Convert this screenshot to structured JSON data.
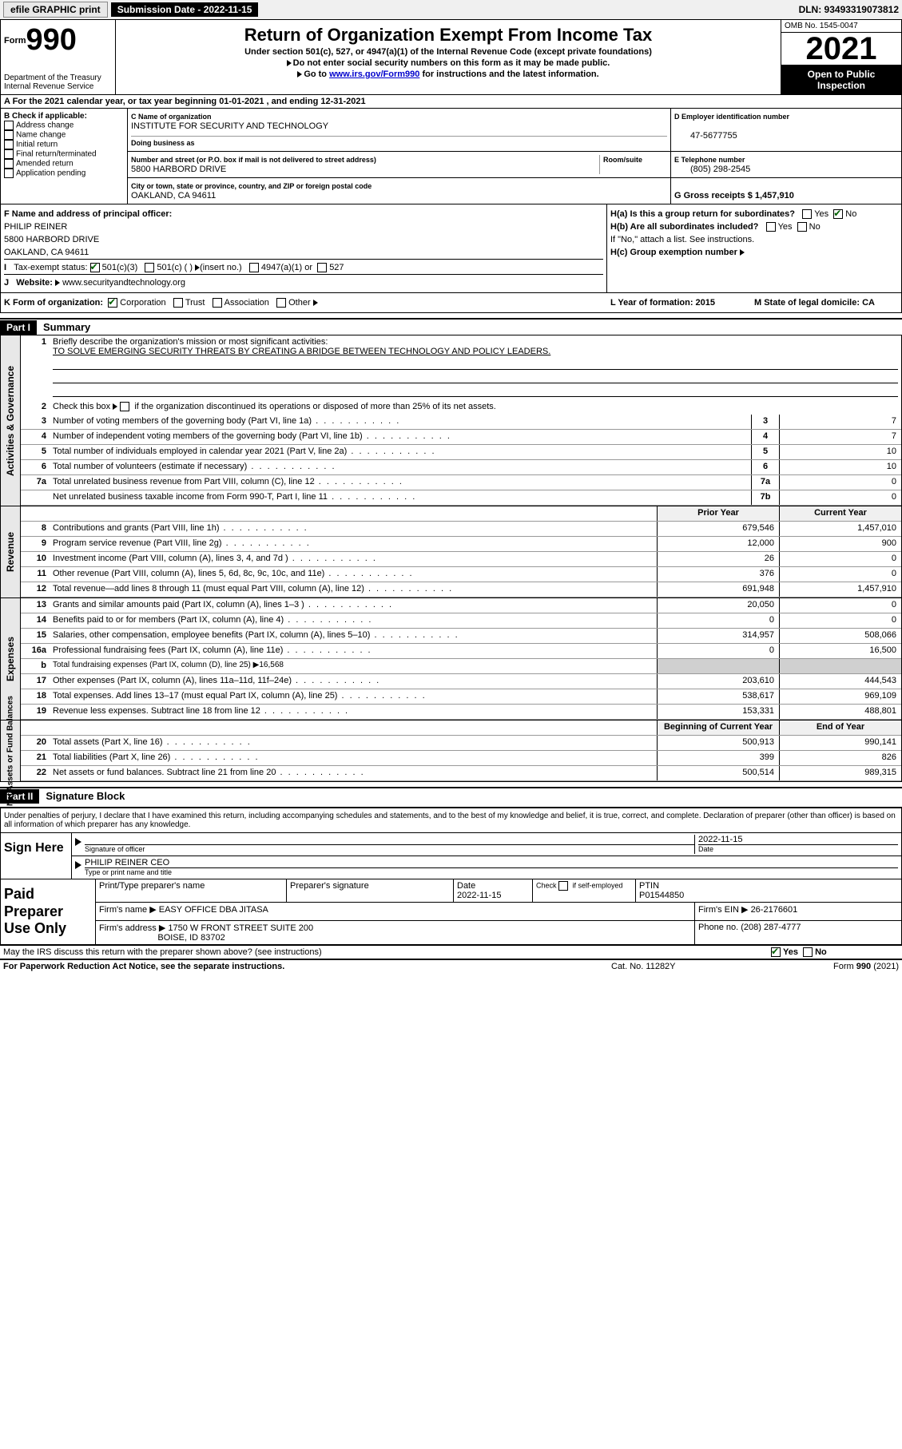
{
  "topbar": {
    "efile": "efile GRAPHIC print",
    "subdate_label": "Submission Date - 2022-11-15",
    "dln": "DLN: 93493319073812"
  },
  "header": {
    "form_prefix": "Form",
    "form_number": "990",
    "dept": "Department of the Treasury Internal Revenue Service",
    "title": "Return of Organization Exempt From Income Tax",
    "subtitle": "Under section 501(c), 527, or 4947(a)(1) of the Internal Revenue Code (except private foundations)",
    "note1": "Do not enter social security numbers on this form as it may be made public.",
    "note2_pre": "Go to ",
    "note2_link": "www.irs.gov/Form990",
    "note2_post": " for instructions and the latest information.",
    "omb": "OMB No. 1545-0047",
    "year": "2021",
    "inspect": "Open to Public Inspection"
  },
  "row_a": "A For the 2021 calendar year, or tax year beginning 01-01-2021   , and ending 12-31-2021",
  "section_b": {
    "check_label": "B Check if applicable:",
    "opts": [
      "Address change",
      "Name change",
      "Initial return",
      "Final return/terminated",
      "Amended return",
      "Application pending"
    ],
    "c_label": "C Name of organization",
    "c_name": "INSTITUTE FOR SECURITY AND TECHNOLOGY",
    "dba": "Doing business as",
    "addr_label": "Number and street (or P.O. box if mail is not delivered to street address)",
    "room": "Room/suite",
    "addr": "5800 HARBORD DRIVE",
    "city_label": "City or town, state or province, country, and ZIP or foreign postal code",
    "city": "OAKLAND, CA  94611",
    "d_label": "D Employer identification number",
    "d_ein": "47-5677755",
    "e_label": "E Telephone number",
    "e_phone": "(805) 298-2545",
    "g_label": "G Gross receipts $ 1,457,910"
  },
  "section_f": {
    "f_label": "F Name and address of principal officer:",
    "f_name": "PHILIP REINER",
    "f_addr1": "5800 HARBORD DRIVE",
    "f_addr2": "OAKLAND, CA  94611",
    "i_label": "Tax-exempt status:",
    "i_501c3": "501(c)(3)",
    "i_501c": "501(c) (  )",
    "i_insert": "(insert no.)",
    "i_4947": "4947(a)(1) or",
    "i_527": "527",
    "j_label": "Website:",
    "j_url": "www.securityandtechnology.org",
    "ha": "H(a)  Is this a group return for subordinates?",
    "hb": "H(b)  Are all subordinates included?",
    "hb_note": "If \"No,\" attach a list. See instructions.",
    "hc": "H(c)  Group exemption number",
    "yes": "Yes",
    "no": "No"
  },
  "section_k": {
    "k_label": "K Form of organization:",
    "k_corp": "Corporation",
    "k_trust": "Trust",
    "k_assoc": "Association",
    "k_other": "Other",
    "l_label": "L Year of formation: 2015",
    "m_label": "M State of legal domicile: CA"
  },
  "part1": {
    "header": "Part I",
    "title": "Summary",
    "line1_label": "Briefly describe the organization's mission or most significant activities:",
    "line1_text": "TO SOLVE EMERGING SECURITY THREATS BY CREATING A BRIDGE BETWEEN TECHNOLOGY AND POLICY LEADERS.",
    "line2": "Check this box ▶       if the organization discontinued its operations or disposed of more than 25% of its net assets.",
    "rows_gov": [
      {
        "n": "3",
        "d": "Number of voting members of the governing body (Part VI, line 1a)",
        "box": "3",
        "v": "7"
      },
      {
        "n": "4",
        "d": "Number of independent voting members of the governing body (Part VI, line 1b)",
        "box": "4",
        "v": "7"
      },
      {
        "n": "5",
        "d": "Total number of individuals employed in calendar year 2021 (Part V, line 2a)",
        "box": "5",
        "v": "10"
      },
      {
        "n": "6",
        "d": "Total number of volunteers (estimate if necessary)",
        "box": "6",
        "v": "10"
      },
      {
        "n": "7a",
        "d": "Total unrelated business revenue from Part VIII, column (C), line 12",
        "box": "7a",
        "v": "0"
      },
      {
        "n": "",
        "d": "Net unrelated business taxable income from Form 990-T, Part I, line 11",
        "box": "7b",
        "v": "0"
      }
    ],
    "col_prior": "Prior Year",
    "col_current": "Current Year",
    "rows_rev": [
      {
        "n": "8",
        "d": "Contributions and grants (Part VIII, line 1h)",
        "p": "679,546",
        "c": "1,457,010"
      },
      {
        "n": "9",
        "d": "Program service revenue (Part VIII, line 2g)",
        "p": "12,000",
        "c": "900"
      },
      {
        "n": "10",
        "d": "Investment income (Part VIII, column (A), lines 3, 4, and 7d )",
        "p": "26",
        "c": "0"
      },
      {
        "n": "11",
        "d": "Other revenue (Part VIII, column (A), lines 5, 6d, 8c, 9c, 10c, and 11e)",
        "p": "376",
        "c": "0"
      },
      {
        "n": "12",
        "d": "Total revenue—add lines 8 through 11 (must equal Part VIII, column (A), line 12)",
        "p": "691,948",
        "c": "1,457,910"
      }
    ],
    "rows_exp": [
      {
        "n": "13",
        "d": "Grants and similar amounts paid (Part IX, column (A), lines 1–3 )",
        "p": "20,050",
        "c": "0"
      },
      {
        "n": "14",
        "d": "Benefits paid to or for members (Part IX, column (A), line 4)",
        "p": "0",
        "c": "0"
      },
      {
        "n": "15",
        "d": "Salaries, other compensation, employee benefits (Part IX, column (A), lines 5–10)",
        "p": "314,957",
        "c": "508,066"
      },
      {
        "n": "16a",
        "d": "Professional fundraising fees (Part IX, column (A), line 11e)",
        "p": "0",
        "c": "16,500"
      },
      {
        "n": "b",
        "d": "Total fundraising expenses (Part IX, column (D), line 25) ▶16,568",
        "p": "",
        "c": "",
        "blank": true
      },
      {
        "n": "17",
        "d": "Other expenses (Part IX, column (A), lines 11a–11d, 11f–24e)",
        "p": "203,610",
        "c": "444,543"
      },
      {
        "n": "18",
        "d": "Total expenses. Add lines 13–17 (must equal Part IX, column (A), line 25)",
        "p": "538,617",
        "c": "969,109"
      },
      {
        "n": "19",
        "d": "Revenue less expenses. Subtract line 18 from line 12",
        "p": "153,331",
        "c": "488,801"
      }
    ],
    "col_begin": "Beginning of Current Year",
    "col_end": "End of Year",
    "rows_net": [
      {
        "n": "20",
        "d": "Total assets (Part X, line 16)",
        "p": "500,913",
        "c": "990,141"
      },
      {
        "n": "21",
        "d": "Total liabilities (Part X, line 26)",
        "p": "399",
        "c": "826"
      },
      {
        "n": "22",
        "d": "Net assets or fund balances. Subtract line 21 from line 20",
        "p": "500,514",
        "c": "989,315"
      }
    ],
    "vtab_gov": "Activities & Governance",
    "vtab_rev": "Revenue",
    "vtab_exp": "Expenses",
    "vtab_net": "Net Assets or Fund Balances"
  },
  "part2": {
    "header": "Part II",
    "title": "Signature Block",
    "para": "Under penalties of perjury, I declare that I have examined this return, including accompanying schedules and statements, and to the best of my knowledge and belief, it is true, correct, and complete. Declaration of preparer (other than officer) is based on all information of which preparer has any knowledge.",
    "sign_here": "Sign Here",
    "sig_officer": "Signature of officer",
    "sig_date": "2022-11-15",
    "date_label": "Date",
    "sig_name": "PHILIP REINER CEO",
    "sig_name_label": "Type or print name and title",
    "paid": "Paid Preparer Use Only",
    "prep_name_label": "Print/Type preparer's name",
    "prep_sig_label": "Preparer's signature",
    "prep_date_label": "Date",
    "prep_date": "2022-11-15",
    "prep_check": "Check       if self-employed",
    "ptin_label": "PTIN",
    "ptin": "P01544850",
    "firm_name_label": "Firm's name   ▶",
    "firm_name": "EASY OFFICE DBA JITASA",
    "firm_ein_label": "Firm's EIN ▶",
    "firm_ein": "26-2176601",
    "firm_addr_label": "Firm's address ▶",
    "firm_addr1": "1750 W FRONT STREET SUITE 200",
    "firm_addr2": "BOISE, ID  83702",
    "phone_label": "Phone no.",
    "phone": "(208) 287-4777",
    "may_discuss": "May the IRS discuss this return with the preparer shown above? (see instructions)",
    "paperwork": "For Paperwork Reduction Act Notice, see the separate instructions.",
    "cat": "Cat. No. 11282Y",
    "form_foot": "Form 990 (2021)"
  }
}
